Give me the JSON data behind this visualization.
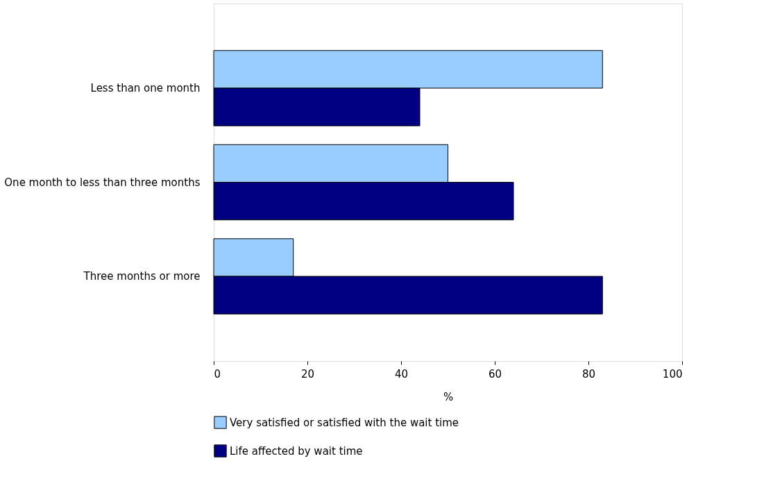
{
  "chart_data": {
    "type": "bar",
    "orientation": "horizontal",
    "categories": [
      "Less than one month",
      "One month to less than three months",
      "Three months or more"
    ],
    "series": [
      {
        "name": "Very satisfied or satisfied with the wait time",
        "color": "#99ccff",
        "values": [
          83,
          50,
          17
        ]
      },
      {
        "name": "Life affected by wait time",
        "color": "#000080",
        "values": [
          44,
          64,
          83
        ]
      }
    ],
    "xlabel": "%",
    "xlim": [
      0,
      100
    ],
    "xticks": [
      0,
      20,
      40,
      60,
      80,
      100
    ],
    "grid": false,
    "legend": "bottom"
  }
}
